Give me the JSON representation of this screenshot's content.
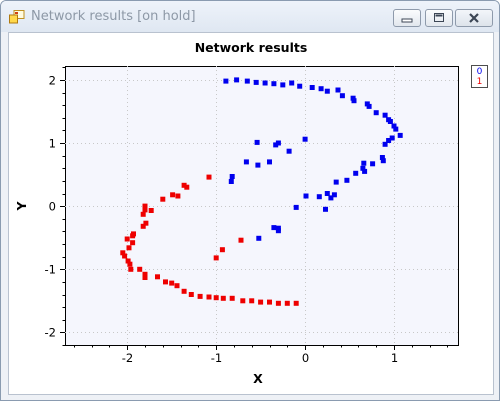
{
  "window": {
    "title": "Network results [on hold]",
    "icon": "app-window-icon",
    "controls": [
      "minimize-icon",
      "maximize-icon",
      "close-icon"
    ]
  },
  "chart_data": {
    "type": "scatter",
    "title": "Network results",
    "xlabel": "X",
    "ylabel": "Y",
    "xlim": [
      -2.7,
      1.72
    ],
    "ylim": [
      -2.2,
      2.22
    ],
    "xticks": [
      -2,
      -1,
      0,
      1
    ],
    "yticks": [
      -2,
      -1,
      0,
      1,
      2
    ],
    "tick_labels_x": [
      "-2",
      "-1",
      "0",
      "1"
    ],
    "tick_labels_y": [
      "-2",
      "-1",
      "0",
      "1",
      "2"
    ],
    "grid": true,
    "legend": {
      "position": "top-right-outside",
      "entries": [
        "0",
        "1"
      ]
    },
    "series": [
      {
        "name": "0",
        "color": "#0000ee",
        "points": [
          [
            -0.89,
            1.98
          ],
          [
            -0.77,
            2.0
          ],
          [
            -0.65,
            1.98
          ],
          [
            -0.55,
            1.96
          ],
          [
            -0.45,
            1.95
          ],
          [
            -0.35,
            1.94
          ],
          [
            -0.25,
            1.92
          ],
          [
            -0.15,
            1.95
          ],
          [
            -0.06,
            1.9
          ],
          [
            0.08,
            1.88
          ],
          [
            0.18,
            1.86
          ],
          [
            0.25,
            1.82
          ],
          [
            0.37,
            1.84
          ],
          [
            0.42,
            1.75
          ],
          [
            0.54,
            1.71
          ],
          [
            0.55,
            1.67
          ],
          [
            0.7,
            1.62
          ],
          [
            0.72,
            1.58
          ],
          [
            0.8,
            1.48
          ],
          [
            0.9,
            1.44
          ],
          [
            0.94,
            1.37
          ],
          [
            0.96,
            1.34
          ],
          [
            1.0,
            1.27
          ],
          [
            1.02,
            1.22
          ],
          [
            1.07,
            1.12
          ],
          [
            0.98,
            1.08
          ],
          [
            0.94,
            1.04
          ],
          [
            0.9,
            0.98
          ],
          [
            0.87,
            0.77
          ],
          [
            0.88,
            0.72
          ],
          [
            0.76,
            0.67
          ],
          [
            0.66,
            0.68
          ],
          [
            0.65,
            0.6
          ],
          [
            0.67,
            0.55
          ],
          [
            0.57,
            0.52
          ],
          [
            0.47,
            0.41
          ],
          [
            0.35,
            0.38
          ],
          [
            0.25,
            0.2
          ],
          [
            0.33,
            0.18
          ],
          [
            0.29,
            0.13
          ],
          [
            0.16,
            0.15
          ],
          [
            0.01,
            0.16
          ],
          [
            -0.1,
            -0.02
          ],
          [
            0.23,
            -0.05
          ],
          [
            -0.3,
            -0.35
          ],
          [
            -0.35,
            -0.34
          ],
          [
            -0.3,
            -0.39
          ],
          [
            -0.52,
            -0.51
          ],
          [
            -0.82,
            0.47
          ],
          [
            -0.83,
            0.39
          ],
          [
            -0.66,
            0.7
          ],
          [
            -0.53,
            0.65
          ],
          [
            -0.4,
            0.7
          ],
          [
            -0.54,
            1.01
          ],
          [
            -0.3,
            1.0
          ],
          [
            -0.33,
            0.97
          ],
          [
            -0.18,
            0.87
          ],
          [
            -0.0,
            1.06
          ]
        ]
      },
      {
        "name": "1",
        "color": "#ee0000",
        "points": [
          [
            -1.08,
            0.46
          ],
          [
            -1.33,
            0.3
          ],
          [
            -1.36,
            0.33
          ],
          [
            -1.43,
            0.16
          ],
          [
            -1.49,
            0.18
          ],
          [
            -1.6,
            0.11
          ],
          [
            -1.73,
            -0.07
          ],
          [
            -1.8,
            -0.06
          ],
          [
            -1.82,
            -0.13
          ],
          [
            -1.8,
            0.0
          ],
          [
            -1.79,
            -0.27
          ],
          [
            -1.82,
            -0.32
          ],
          [
            -1.93,
            -0.44
          ],
          [
            -1.94,
            -0.47
          ],
          [
            -2.0,
            -0.52
          ],
          [
            -1.94,
            -0.58
          ],
          [
            -1.98,
            -0.66
          ],
          [
            -2.05,
            -0.74
          ],
          [
            -2.03,
            -0.79
          ],
          [
            -1.99,
            -0.87
          ],
          [
            -1.97,
            -0.92
          ],
          [
            -1.96,
            -1.0
          ],
          [
            -1.86,
            -1.0
          ],
          [
            -1.8,
            -1.08
          ],
          [
            -1.8,
            -1.13
          ],
          [
            -1.66,
            -1.12
          ],
          [
            -1.57,
            -1.2
          ],
          [
            -1.5,
            -1.22
          ],
          [
            -1.44,
            -1.26
          ],
          [
            -1.36,
            -1.35
          ],
          [
            -1.28,
            -1.4
          ],
          [
            -1.18,
            -1.43
          ],
          [
            -1.08,
            -1.44
          ],
          [
            -1.0,
            -1.45
          ],
          [
            -0.92,
            -1.46
          ],
          [
            -0.82,
            -1.46
          ],
          [
            -0.7,
            -1.5
          ],
          [
            -0.6,
            -1.5
          ],
          [
            -0.5,
            -1.52
          ],
          [
            -0.4,
            -1.52
          ],
          [
            -0.3,
            -1.54
          ],
          [
            -0.2,
            -1.54
          ],
          [
            -0.1,
            -1.54
          ],
          [
            -0.72,
            -0.54
          ],
          [
            -0.93,
            -0.69
          ],
          [
            -1.0,
            -0.82
          ]
        ]
      }
    ]
  }
}
